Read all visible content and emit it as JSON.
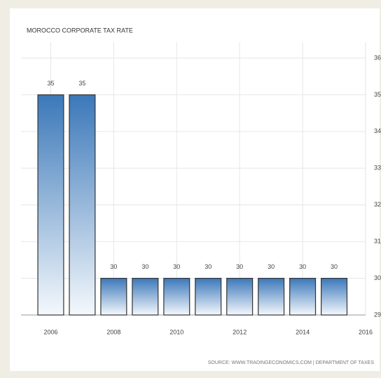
{
  "chart_data": {
    "type": "bar",
    "title": "MOROCCO CORPORATE TAX RATE",
    "source": "SOURCE: WWW.TRADINGECONOMICS.COM | DEPARTMENT OF TAXES",
    "x": [
      2006,
      2007,
      2008,
      2009,
      2010,
      2011,
      2012,
      2013,
      2014,
      2015
    ],
    "values": [
      35,
      35,
      30,
      30,
      30,
      30,
      30,
      30,
      30,
      30
    ],
    "xlim": [
      2005.5,
      2016
    ],
    "xticks": [
      2006,
      2008,
      2010,
      2012,
      2014,
      2016
    ],
    "ylim": [
      29,
      36
    ],
    "yticks": [
      29,
      30,
      31,
      32,
      33,
      34,
      35,
      36
    ],
    "grid": true
  }
}
